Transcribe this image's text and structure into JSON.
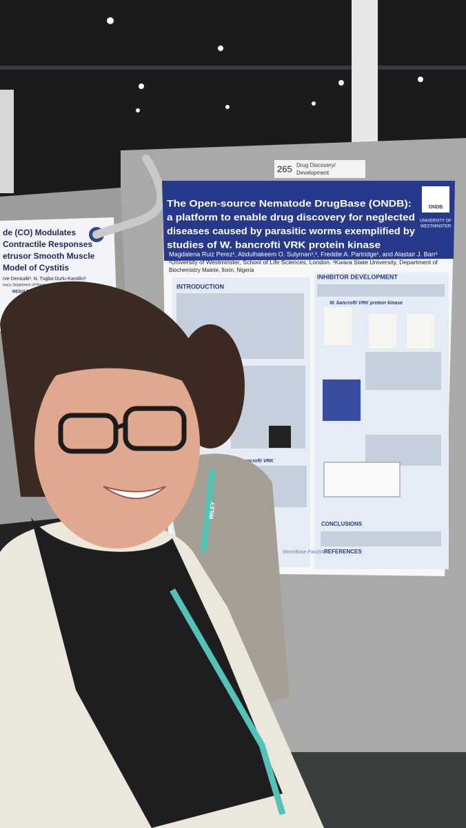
{
  "booth": {
    "number": "265",
    "topic_lines": [
      "Drug Discovery/",
      "Development"
    ]
  },
  "poster": {
    "title_lines": [
      "The Open-source Nematode DrugBase (ONDB):",
      "a platform to enable drug discovery for neglected",
      "diseases caused by parasitic worms exemplified by",
      "studies of W. bancrofti VRK protein kinase"
    ],
    "author_lines": [
      "Magdalena Ruiz Perez¹, Abdulhakeem O. Sulyman¹,², Freddie A. Partridge¹, and Alastair J. Barr¹",
      "¹University of Westminster, School of Life Sciences, London. ²Kwara State University, Department of",
      "Biochemistry Malete, Ilorin, Nigeria"
    ],
    "logo": "ONDB",
    "university_lines": [
      "UNIVERSITY OF",
      "WESTMINSTER"
    ],
    "sections": {
      "introduction": "INTRODUCTION",
      "inhibitor": "INHIBITOR DEVELOPMENT",
      "vrk_kinase": "W. bancrofti VRK protein kinase",
      "vrk": "W. bancrofti VRK",
      "conclusions": "CONCLUSIONS",
      "references": "REFERENCES"
    },
    "footer_logo": "WormBase ParaSite"
  },
  "left_poster": {
    "title_lines": [
      "de (CO) Modulates",
      "Contractile Responses",
      "etrusor Smooth Muscle",
      "Model of Cystitis"
    ],
    "authors": "rve Denizalti¹, N. Tugba Durlu-Kandilci¹",
    "affiliation": "macy, Department of Pharmacology, Ankara, Türkiye",
    "results": "RESULTS"
  },
  "lanyard": "WILEY"
}
